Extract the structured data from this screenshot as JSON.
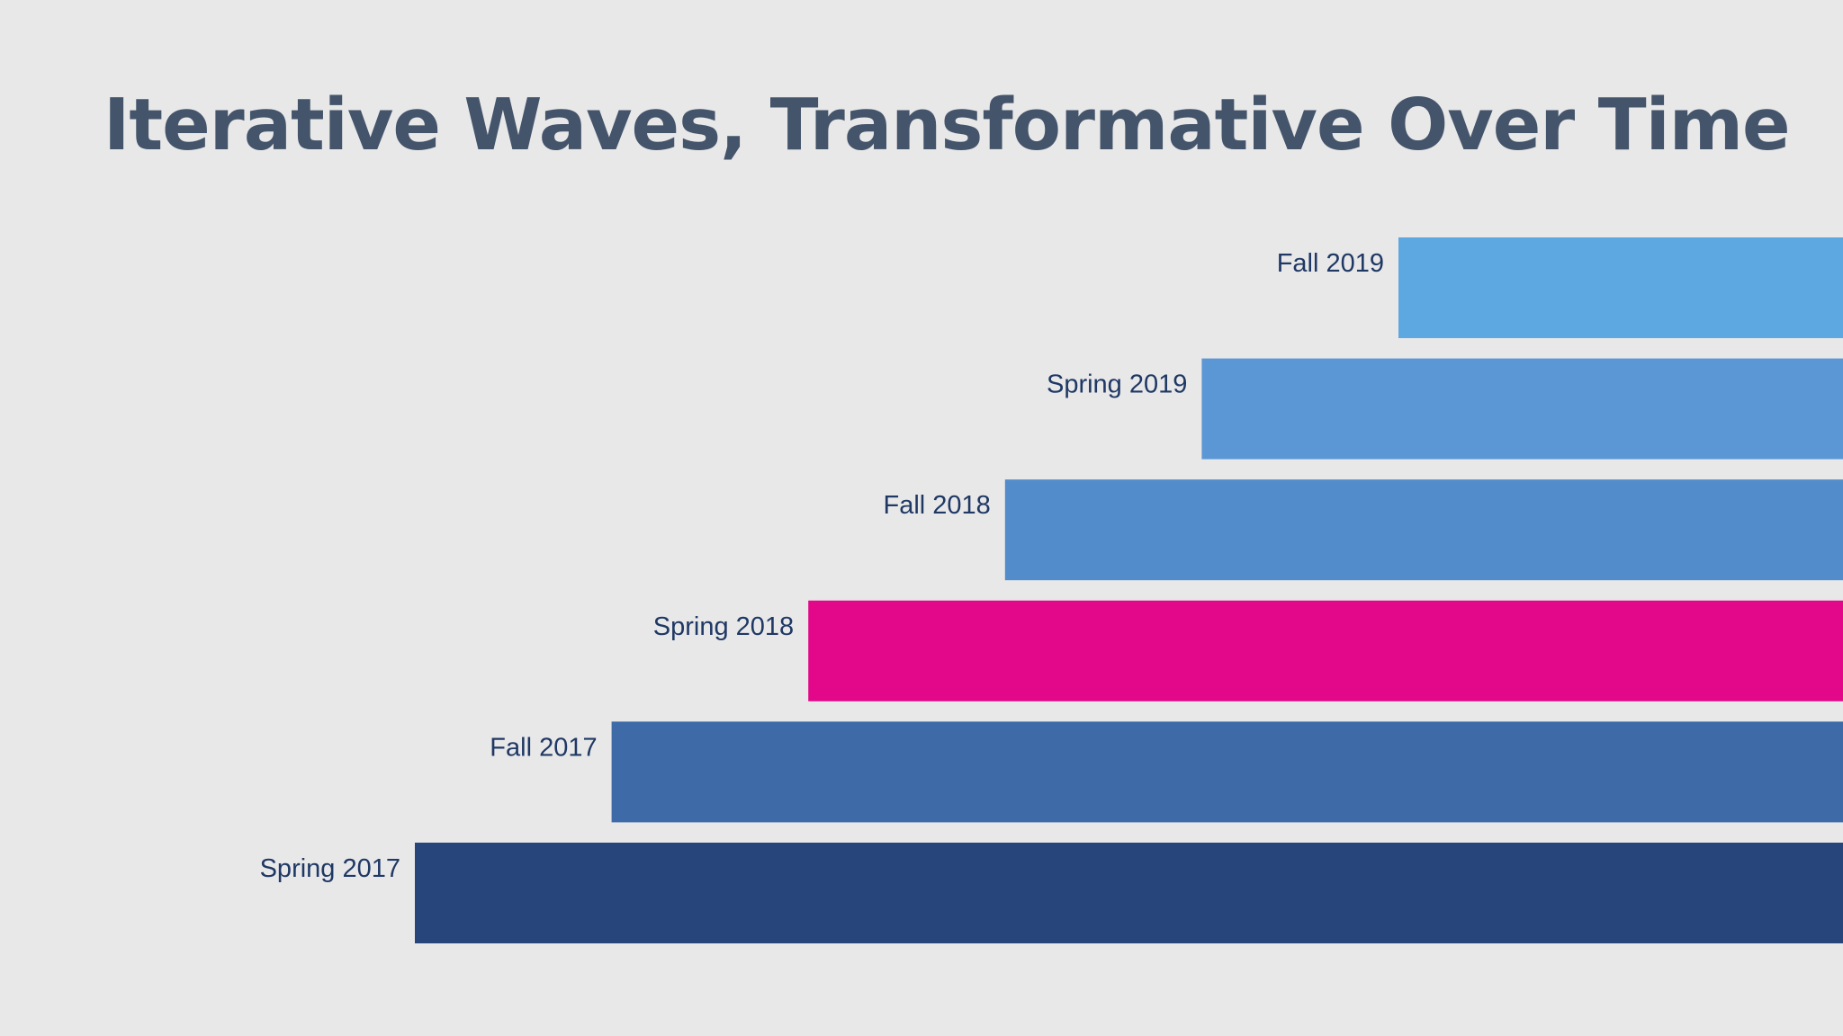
{
  "slide": {
    "title": "Iterative Waves, Transformative Over Time"
  },
  "chart_data": {
    "type": "bar",
    "orientation": "horizontal-staggered-timeline",
    "title": "Iterative Waves, Transformative Over Time",
    "categories": [
      "Spring 2017",
      "Fall 2017",
      "Spring 2018",
      "Fall 2018",
      "Spring 2019",
      "Fall 2019"
    ],
    "start_order": [
      0,
      1,
      2,
      3,
      4,
      5
    ],
    "colors": [
      "#27457a",
      "#3e6aa7",
      "#e3078a",
      "#538ccb",
      "#5b96d5",
      "#5ea8e2"
    ],
    "highlight": "Spring 2018"
  }
}
